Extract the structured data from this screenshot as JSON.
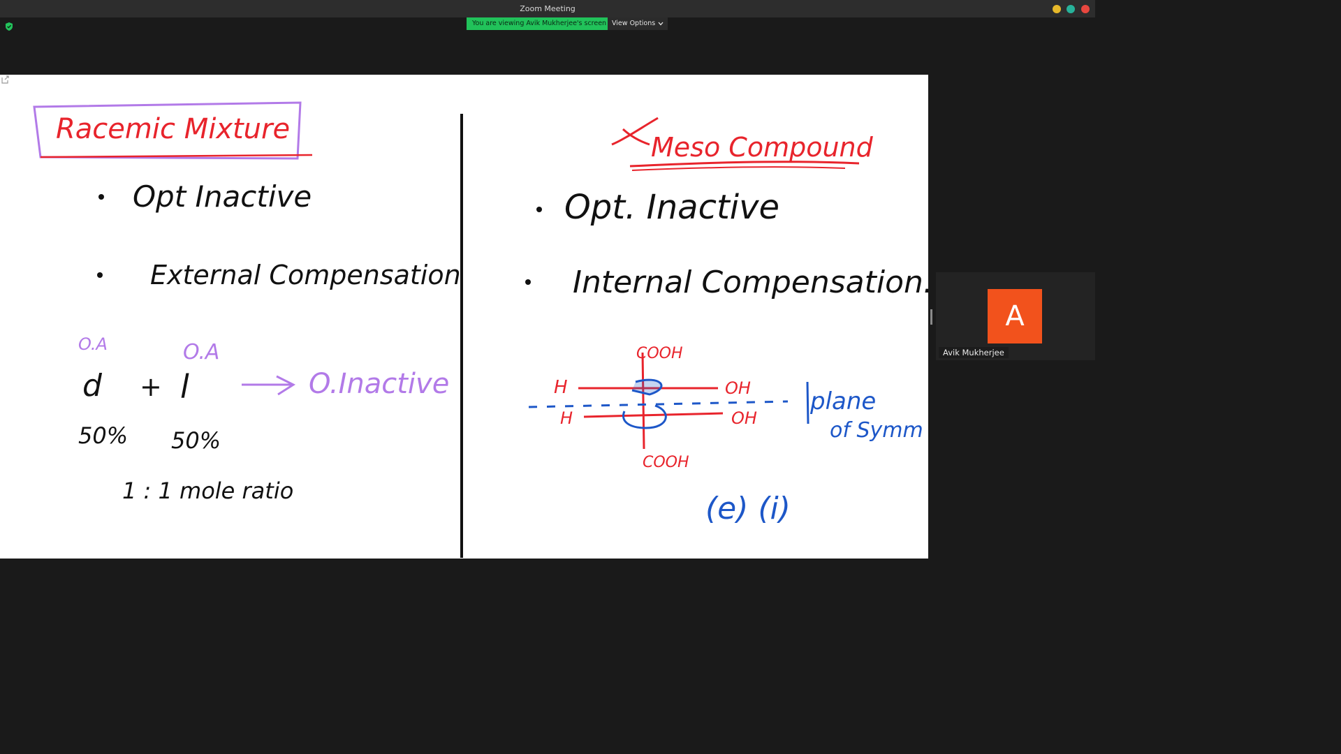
{
  "window": {
    "title": "Zoom Meeting"
  },
  "banner": {
    "viewing_text": "You are viewing Avik Mukherjee's screen",
    "view_options_label": "View Options"
  },
  "whiteboard": {
    "left": {
      "title": "Racemic Mixture",
      "bullet1": "Opt Inactive",
      "bullet2": "External Compensation",
      "label_oa_1": "O.A",
      "label_oa_2": "O.A",
      "letter_d": "d",
      "plus": "+",
      "letter_l": "l",
      "result": "O.Inactive",
      "pct1": "50%",
      "pct2": "50%",
      "ratio": "1 : 1  mole ratio"
    },
    "right": {
      "title": "Meso Compound",
      "bullet1": "Opt. Inactive",
      "bullet2": "Internal Compensation.",
      "cooh_top": "COOH",
      "cooh_bottom": "COOH",
      "h1": "H",
      "oh1": "OH",
      "h2": "H",
      "oh2": "OH",
      "plane": "plane",
      "of_symm": "of Symm",
      "label_bottom": "(e) (i)"
    }
  },
  "participant": {
    "initial": "A",
    "name": "Avik Mukherjee",
    "avatar_color": "#f2521c"
  },
  "colors": {
    "banner_green": "#21c25a",
    "ink_red": "#e8242c",
    "ink_purple": "#b27ae8",
    "ink_blue": "#1d57c8"
  }
}
